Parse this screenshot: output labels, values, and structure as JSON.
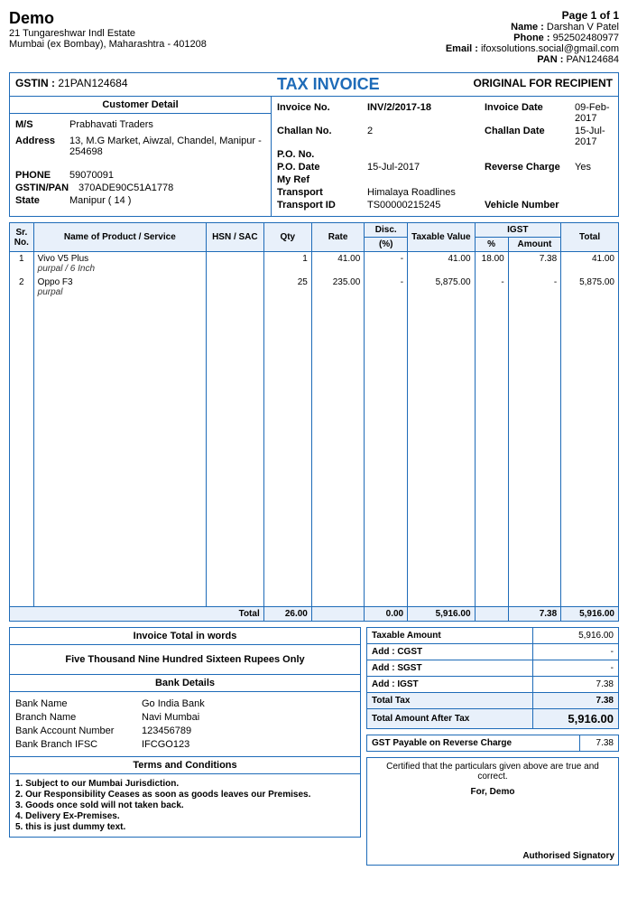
{
  "company": {
    "name": "Demo",
    "addr1": "21 Tungareshwar Indl Estate",
    "addr2": "Mumbai (ex Bombay), Maharashtra - 401208"
  },
  "header_right": {
    "page": "Page 1 of 1",
    "name_label": "Name :",
    "name": "Darshan V Patel",
    "phone_label": "Phone :",
    "phone": "952502480977",
    "email_label": "Email :",
    "email": "ifoxsolutions.social@gmail.com",
    "pan_label": "PAN :",
    "pan": "PAN124684"
  },
  "gstin_label": "GSTIN :",
  "gstin": "21PAN124684",
  "doc_title": "TAX INVOICE",
  "original": "ORIGINAL FOR RECIPIENT",
  "customer": {
    "header": "Customer Detail",
    "ms_label": "M/S",
    "ms": "Prabhavati Traders",
    "addr_label": "Address",
    "addr": "13, M.G Market, Aiwzal, Chandel, Manipur - 254698",
    "phone_label": "PHONE",
    "phone": "59070091",
    "gstin_label": "GSTIN/PAN",
    "gstin": "370ADE90C51A1778",
    "state_label": "State",
    "state": "Manipur ( 14 )"
  },
  "inv": {
    "no_label": "Invoice No.",
    "no": "INV/2/2017-18",
    "date_label": "Invoice Date",
    "date": "09-Feb-2017",
    "challan_label": "Challan No.",
    "challan": "2",
    "challan_date_label": "Challan Date",
    "challan_date": "15-Jul-2017",
    "po_label": "P.O. No.",
    "po": "",
    "po_date_label": "P.O. Date",
    "po_date": "15-Jul-2017",
    "reverse_label": "Reverse Charge",
    "reverse": "Yes",
    "myref_label": "My Ref",
    "myref": "",
    "transport_label": "Transport",
    "transport": "Himalaya Roadlines",
    "transport_id_label": "Transport ID",
    "transport_id": "TS00000215245",
    "vehicle_label": "Vehicle Number",
    "vehicle": ""
  },
  "cols": {
    "sr": "Sr. No.",
    "name": "Name of Product / Service",
    "hsn": "HSN / SAC",
    "qty": "Qty",
    "rate": "Rate",
    "disc": "Disc.",
    "disc_pct": "(%)",
    "taxval": "Taxable Value",
    "igst": "IGST",
    "igst_pct": "%",
    "igst_amt": "Amount",
    "total": "Total"
  },
  "items": [
    {
      "sr": "1",
      "name": "Vivo V5 Plus",
      "desc": "purpal / 6 Inch",
      "hsn": "",
      "qty": "1",
      "rate": "41.00",
      "disc": "-",
      "taxval": "41.00",
      "igst_pct": "18.00",
      "igst_amt": "7.38",
      "total": "41.00"
    },
    {
      "sr": "2",
      "name": "Oppo F3",
      "desc": "purpal",
      "hsn": "",
      "qty": "25",
      "rate": "235.00",
      "disc": "-",
      "taxval": "5,875.00",
      "igst_pct": "-",
      "igst_amt": "-",
      "total": "5,875.00"
    }
  ],
  "totals_row": {
    "label": "Total",
    "qty": "26.00",
    "rate": "",
    "disc": "0.00",
    "taxval": "5,916.00",
    "igst_pct": "",
    "igst_amt": "7.38",
    "total": "5,916.00"
  },
  "words": {
    "header": "Invoice Total in words",
    "text": "Five Thousand Nine Hundred Sixteen Rupees Only"
  },
  "bank": {
    "header": "Bank Details",
    "name_label": "Bank Name",
    "name": "Go India Bank",
    "branch_label": "Branch Name",
    "branch": "Navi Mumbai",
    "acct_label": "Bank Account Number",
    "acct": "123456789",
    "ifsc_label": "Bank Branch IFSC",
    "ifsc": "IFCGO123"
  },
  "terms": {
    "header": "Terms and Conditions",
    "lines": [
      "1. Subject to our Mumbai Jurisdiction.",
      "2. Our Responsibility Ceases as soon as goods leaves our Premises.",
      "3. Goods once sold will not taken back.",
      "4. Delivery Ex-Premises.",
      "5. this is just dummy text."
    ]
  },
  "tax": {
    "taxable_label": "Taxable Amount",
    "taxable": "5,916.00",
    "cgst_label": "Add : CGST",
    "cgst": "-",
    "sgst_label": "Add : SGST",
    "sgst": "-",
    "igst_label": "Add : IGST",
    "igst": "7.38",
    "total_tax_label": "Total Tax",
    "total_tax": "7.38",
    "after_label": "Total Amount After Tax",
    "after": "5,916.00",
    "payable_label": "GST Payable on Reverse Charge",
    "payable": "7.38"
  },
  "cert": {
    "text": "Certified that the particulars given above are true and correct.",
    "for": "For, Demo",
    "sig": "Authorised Signatory"
  }
}
